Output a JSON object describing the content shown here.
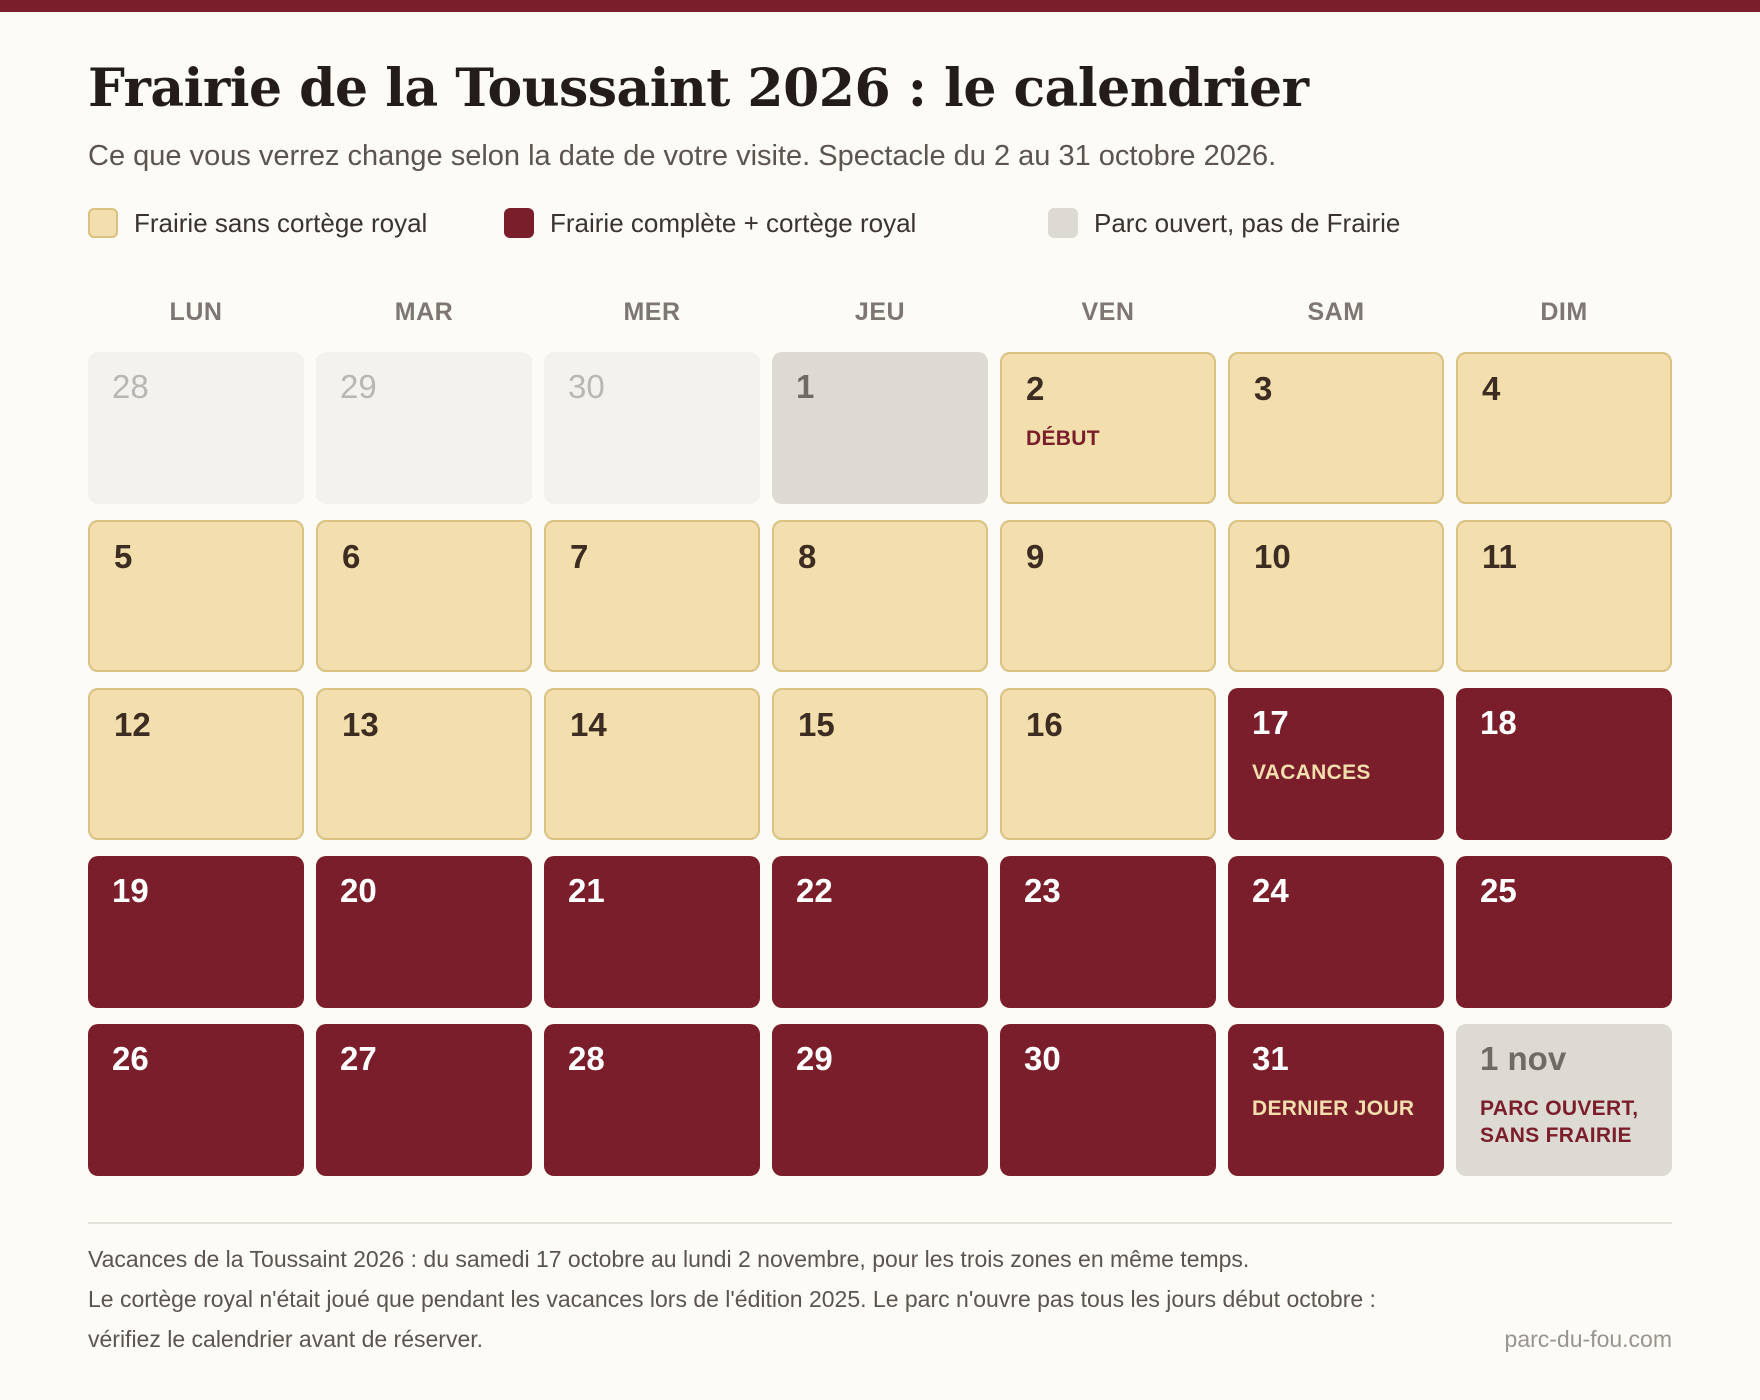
{
  "title": "Frairie de la Toussaint 2026 : le calendrier",
  "subtitle": "Ce que vous verrez change selon la date de votre visite. Spectacle du 2 au 31 octobre 2026.",
  "colors": {
    "accent": "#7b1e2b",
    "frairie_sans_cortege": "#f3dfae",
    "frairie_complete": "#7b1e2b",
    "parc_ouvert": "#dddad3",
    "hors_mois": "#f3f2ef"
  },
  "legend": [
    {
      "label": "Frairie sans cortège royal",
      "color": "#f3dfae"
    },
    {
      "label": "Frairie complète + cortège royal",
      "color": "#7b1e2b"
    },
    {
      "label": "Parc ouvert, pas de Frairie",
      "color": "#dddad3"
    }
  ],
  "weekdays": [
    "LUN",
    "MAR",
    "MER",
    "JEU",
    "VEN",
    "SAM",
    "DIM"
  ],
  "weeks": [
    [
      {
        "day": "28",
        "status": "out",
        "note": ""
      },
      {
        "day": "29",
        "status": "out",
        "note": ""
      },
      {
        "day": "30",
        "status": "out",
        "note": ""
      },
      {
        "day": "1",
        "status": "closed",
        "note": ""
      },
      {
        "day": "2",
        "status": "light",
        "note": "DÉBUT"
      },
      {
        "day": "3",
        "status": "light",
        "note": ""
      },
      {
        "day": "4",
        "status": "light",
        "note": ""
      }
    ],
    [
      {
        "day": "5",
        "status": "light",
        "note": ""
      },
      {
        "day": "6",
        "status": "light",
        "note": ""
      },
      {
        "day": "7",
        "status": "light",
        "note": ""
      },
      {
        "day": "8",
        "status": "light",
        "note": ""
      },
      {
        "day": "9",
        "status": "light",
        "note": ""
      },
      {
        "day": "10",
        "status": "light",
        "note": ""
      },
      {
        "day": "11",
        "status": "light",
        "note": ""
      }
    ],
    [
      {
        "day": "12",
        "status": "light",
        "note": ""
      },
      {
        "day": "13",
        "status": "light",
        "note": ""
      },
      {
        "day": "14",
        "status": "light",
        "note": ""
      },
      {
        "day": "15",
        "status": "light",
        "note": ""
      },
      {
        "day": "16",
        "status": "light",
        "note": ""
      },
      {
        "day": "17",
        "status": "dark",
        "note": "VACANCES"
      },
      {
        "day": "18",
        "status": "dark",
        "note": ""
      }
    ],
    [
      {
        "day": "19",
        "status": "dark",
        "note": ""
      },
      {
        "day": "20",
        "status": "dark",
        "note": ""
      },
      {
        "day": "21",
        "status": "dark",
        "note": ""
      },
      {
        "day": "22",
        "status": "dark",
        "note": ""
      },
      {
        "day": "23",
        "status": "dark",
        "note": ""
      },
      {
        "day": "24",
        "status": "dark",
        "note": ""
      },
      {
        "day": "25",
        "status": "dark",
        "note": ""
      }
    ],
    [
      {
        "day": "26",
        "status": "dark",
        "note": ""
      },
      {
        "day": "27",
        "status": "dark",
        "note": ""
      },
      {
        "day": "28",
        "status": "dark",
        "note": ""
      },
      {
        "day": "29",
        "status": "dark",
        "note": ""
      },
      {
        "day": "30",
        "status": "dark",
        "note": ""
      },
      {
        "day": "31",
        "status": "dark",
        "note": "DERNIER JOUR"
      },
      {
        "day": "1 nov",
        "status": "closed",
        "note": "PARC OUVERT, SANS FRAIRIE"
      }
    ]
  ],
  "footnotes": [
    "Vacances de la Toussaint 2026 : du samedi 17 octobre au lundi 2 novembre, pour les trois zones en même temps.",
    "Le cortège royal n'était joué que pendant les vacances lors de l'édition 2025. Le parc n'ouvre pas tous les jours début octobre :",
    "vérifiez le calendrier avant de réserver."
  ],
  "source": "parc-du-fou.com"
}
